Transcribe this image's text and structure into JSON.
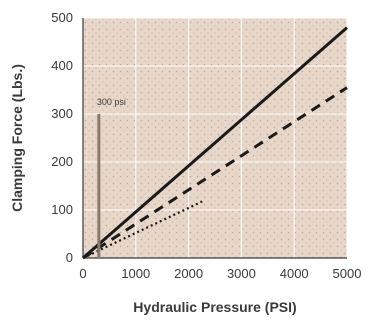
{
  "chart_data": {
    "type": "line",
    "title": "",
    "xlabel": "Hydraulic Pressure (PSI)",
    "ylabel": "Clamping Force (Lbs.)",
    "xlim": [
      0,
      5000
    ],
    "ylim": [
      0,
      500
    ],
    "x_ticks": [
      "0",
      "1000",
      "2000",
      "3000",
      "4000",
      "5000"
    ],
    "y_ticks": [
      "0",
      "100",
      "200",
      "300",
      "400",
      "500"
    ],
    "grid": true,
    "plot_background": "#e7d7c9",
    "series": [
      {
        "style": "solid",
        "color": "#1a1a1a",
        "points": [
          [
            0,
            0
          ],
          [
            5000,
            480
          ]
        ]
      },
      {
        "style": "dashed",
        "color": "#1a1a1a",
        "points": [
          [
            0,
            0
          ],
          [
            5000,
            355
          ]
        ]
      },
      {
        "style": "dotted",
        "color": "#1a1a1a",
        "points": [
          [
            0,
            0
          ],
          [
            2300,
            120
          ]
        ]
      }
    ],
    "annotations": [
      {
        "text": "300 psi",
        "x": 300,
        "y": 300
      }
    ]
  }
}
